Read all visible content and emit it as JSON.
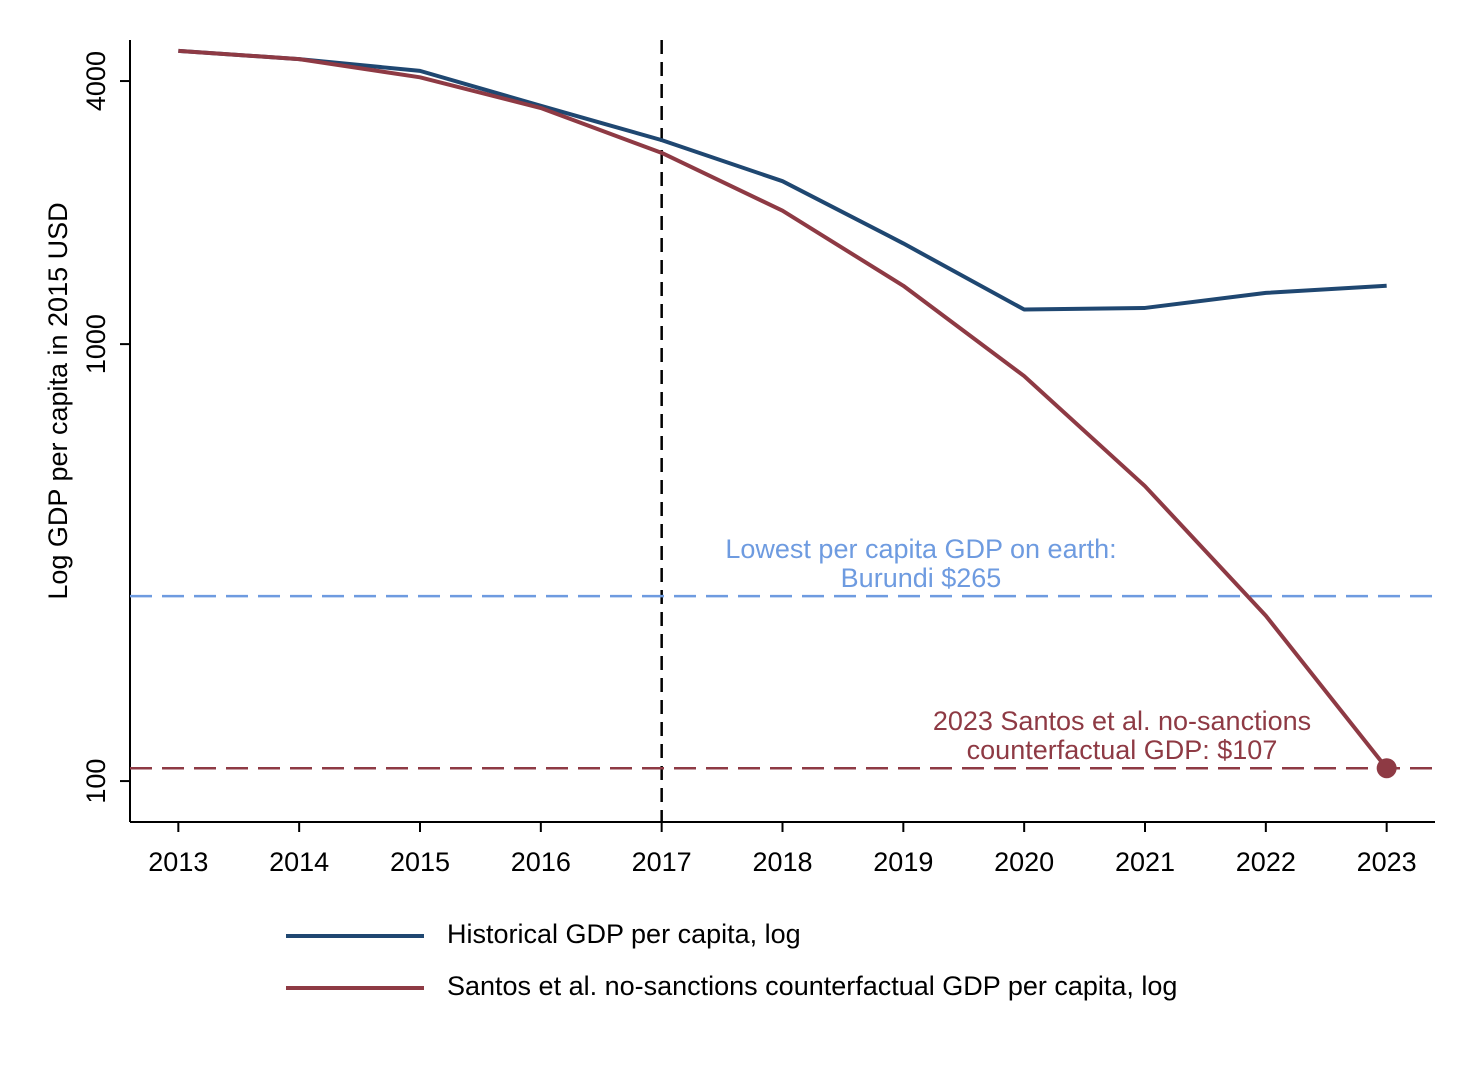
{
  "chart_data": {
    "type": "line",
    "y_label": "Log GDP per capita in 2015 USD",
    "x": [
      2013,
      2014,
      2015,
      2016,
      2017,
      2018,
      2019,
      2020,
      2021,
      2022,
      2023
    ],
    "series": [
      {
        "name": "Historical GDP per capita, log",
        "color": "#1f4771",
        "values": [
          4690,
          4490,
          4220,
          3510,
          2930,
          2360,
          1700,
          1200,
          1210,
          1310,
          1360
        ]
      },
      {
        "name": "Santos et al. no-sanctions counterfactual GDP per capita, log",
        "color": "#8e3a44",
        "values": [
          4690,
          4490,
          4080,
          3470,
          2740,
          2020,
          1360,
          845,
          473,
          239,
          107
        ],
        "marker_last": true
      }
    ],
    "xlim": [
      2012.6,
      2023.4
    ],
    "xticks": [
      2013,
      2014,
      2015,
      2016,
      2017,
      2018,
      2019,
      2020,
      2021,
      2022,
      2023
    ],
    "ylim": [
      80.6,
      4966
    ],
    "yticks": [
      100,
      1000,
      4000
    ],
    "y_scale": "log",
    "vline": 2017,
    "hlines": [
      {
        "value": 265,
        "color": "#6e9be0",
        "text": [
          "Lowest per capita GDP on earth:",
          "Burundi $265"
        ]
      },
      {
        "value": 107,
        "color": "#8e3a44",
        "text": [
          "2023 Santos et al. no-sanctions",
          "counterfactual GDP: $107"
        ]
      }
    ],
    "legend": "bottom"
  }
}
